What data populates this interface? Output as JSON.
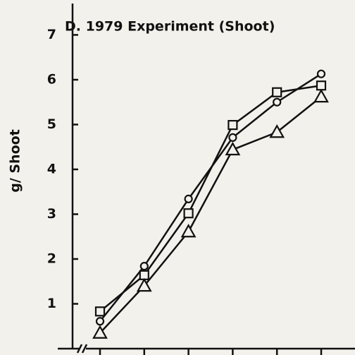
{
  "chart_data": {
    "type": "line",
    "title": "D. 1979 Experiment (Shoot)",
    "y_label": "g/ Shoot",
    "categories": [
      null,
      null,
      null,
      null,
      null,
      null
    ],
    "series": [
      {
        "marker": "circle",
        "color": "#111111",
        "values": [
          0.61,
          1.84,
          3.34,
          4.71,
          5.5,
          6.13
        ]
      },
      {
        "marker": "square",
        "color": "#111111",
        "values": [
          0.83,
          1.64,
          3.02,
          4.99,
          5.72,
          5.87
        ]
      },
      {
        "marker": "triangle",
        "color": "#111111",
        "values": [
          0.35,
          1.4,
          2.61,
          4.44,
          4.83,
          5.62
        ]
      }
    ],
    "ylim": [
      0,
      7.7
    ],
    "yticks": [
      1,
      2,
      3,
      4,
      5,
      6,
      7
    ],
    "grid": false
  }
}
